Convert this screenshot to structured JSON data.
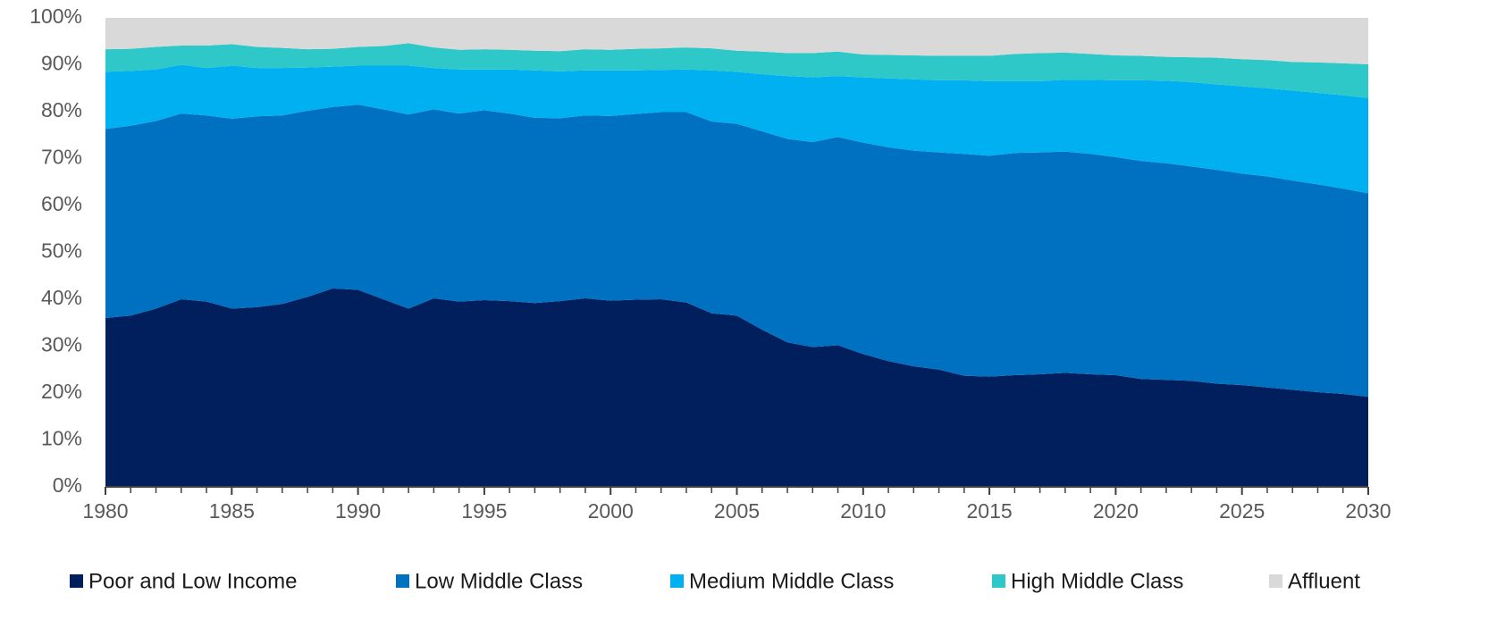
{
  "chart_data": {
    "type": "stacked_area",
    "x": [
      1980,
      1981,
      1982,
      1983,
      1984,
      1985,
      1986,
      1987,
      1988,
      1989,
      1990,
      1991,
      1992,
      1993,
      1994,
      1995,
      1996,
      1997,
      1998,
      1999,
      2000,
      2001,
      2002,
      2003,
      2004,
      2005,
      2006,
      2007,
      2008,
      2009,
      2010,
      2011,
      2012,
      2013,
      2014,
      2015,
      2016,
      2017,
      2018,
      2019,
      2020,
      2021,
      2022,
      2023,
      2024,
      2025,
      2026,
      2027,
      2028,
      2029,
      2030
    ],
    "series": [
      {
        "name": "Poor and Low Income",
        "color": "#001f5c",
        "values": [
          36,
          36.5,
          38,
          40,
          39.5,
          38,
          38.3,
          39,
          40.5,
          42.3,
          42,
          40,
          38,
          40.2,
          39.5,
          39.8,
          39.6,
          39.2,
          39.6,
          40.2,
          39.7,
          39.9,
          40,
          39.3,
          37,
          36.5,
          33.5,
          30.8,
          29.8,
          30.2,
          28.3,
          26.8,
          25.7,
          25,
          23.7,
          23.5,
          23.8,
          24,
          24.3,
          24,
          23.8,
          23,
          22.8,
          22.6,
          22,
          21.7,
          21.2,
          20.7,
          20.2,
          19.8,
          19.2
        ]
      },
      {
        "name": "Low Middle Class",
        "color": "#0070c0",
        "values": [
          40.3,
          40.5,
          40,
          39.6,
          39.7,
          40.5,
          40.7,
          40.2,
          39.7,
          38.7,
          39.5,
          40.5,
          41.4,
          40.3,
          40.1,
          40.5,
          40,
          39.5,
          39,
          39,
          39.4,
          39.6,
          39.9,
          40.6,
          40.9,
          40.9,
          42.3,
          43.4,
          43.7,
          44.4,
          45.1,
          45.6,
          46,
          46.3,
          47.3,
          47.1,
          47.4,
          47.3,
          47.2,
          47,
          46.5,
          46.5,
          46.2,
          45.7,
          45.6,
          45.1,
          45,
          44.6,
          44.3,
          43.8,
          43.4
        ]
      },
      {
        "name": "Medium Middle Class",
        "color": "#00b0f0",
        "values": [
          12.2,
          11.7,
          11,
          10.4,
          10.1,
          11.3,
          10.3,
          10.1,
          9.2,
          8.6,
          8.3,
          9.3,
          10.4,
          8.8,
          9.4,
          8.7,
          9.4,
          10.1,
          10,
          9.6,
          9.7,
          9.3,
          9,
          9.1,
          10.9,
          11.1,
          12.2,
          13.4,
          13.8,
          13,
          13.9,
          14.7,
          15.2,
          15.4,
          15.7,
          15.9,
          15.3,
          15.2,
          15.3,
          15.8,
          16.4,
          17.2,
          17.6,
          18,
          18.2,
          18.6,
          18.8,
          19.2,
          19.5,
          19.9,
          20.3
        ]
      },
      {
        "name": "High Middle Class",
        "color": "#2ec8c8",
        "values": [
          4.8,
          4.7,
          4.8,
          4.1,
          4.8,
          4.6,
          4.5,
          4.3,
          3.9,
          3.8,
          4,
          4.2,
          4.8,
          4.4,
          4.2,
          4.3,
          4.2,
          4.2,
          4.3,
          4.5,
          4.4,
          4.6,
          4.6,
          4.7,
          4.7,
          4.5,
          4.8,
          4.9,
          5.2,
          5.2,
          4.9,
          5,
          5.1,
          5.2,
          5.2,
          5.4,
          5.8,
          6,
          5.8,
          5.5,
          5.3,
          5.2,
          5.1,
          5.3,
          5.7,
          5.8,
          6,
          6.1,
          6.5,
          6.8,
          7.2
        ]
      },
      {
        "name": "Affluent",
        "color": "#d9d9d9",
        "values": [
          6.7,
          6.6,
          6.2,
          5.9,
          5.9,
          5.6,
          6.2,
          6.4,
          6.7,
          6.6,
          6.2,
          6,
          5.4,
          6.3,
          6.8,
          6.7,
          6.8,
          7,
          7.1,
          6.7,
          6.8,
          6.6,
          6.5,
          6.3,
          6.5,
          7,
          7.2,
          7.5,
          7.5,
          7.2,
          7.8,
          7.9,
          8,
          8.1,
          8.1,
          8.1,
          7.7,
          7.5,
          7.4,
          7.7,
          8,
          8.1,
          8.3,
          8.4,
          8.5,
          8.8,
          9,
          9.4,
          9.5,
          9.7,
          9.9
        ]
      }
    ],
    "xlim": [
      1980,
      2030
    ],
    "xticks": [
      1980,
      1985,
      1990,
      1995,
      2000,
      2005,
      2010,
      2015,
      2020,
      2025,
      2030
    ],
    "ylim": [
      0,
      100
    ],
    "yticks": [
      {
        "value": 0,
        "label": "0%"
      },
      {
        "value": 10,
        "label": "10%"
      },
      {
        "value": 20,
        "label": "20%"
      },
      {
        "value": 30,
        "label": "30%"
      },
      {
        "value": 40,
        "label": "40%"
      },
      {
        "value": 50,
        "label": "50%"
      },
      {
        "value": 60,
        "label": "60%"
      },
      {
        "value": 70,
        "label": "70%"
      },
      {
        "value": 80,
        "label": "80%"
      },
      {
        "value": 90,
        "label": "90%"
      },
      {
        "value": 100,
        "label": "100%"
      }
    ],
    "legend": "bottom"
  }
}
